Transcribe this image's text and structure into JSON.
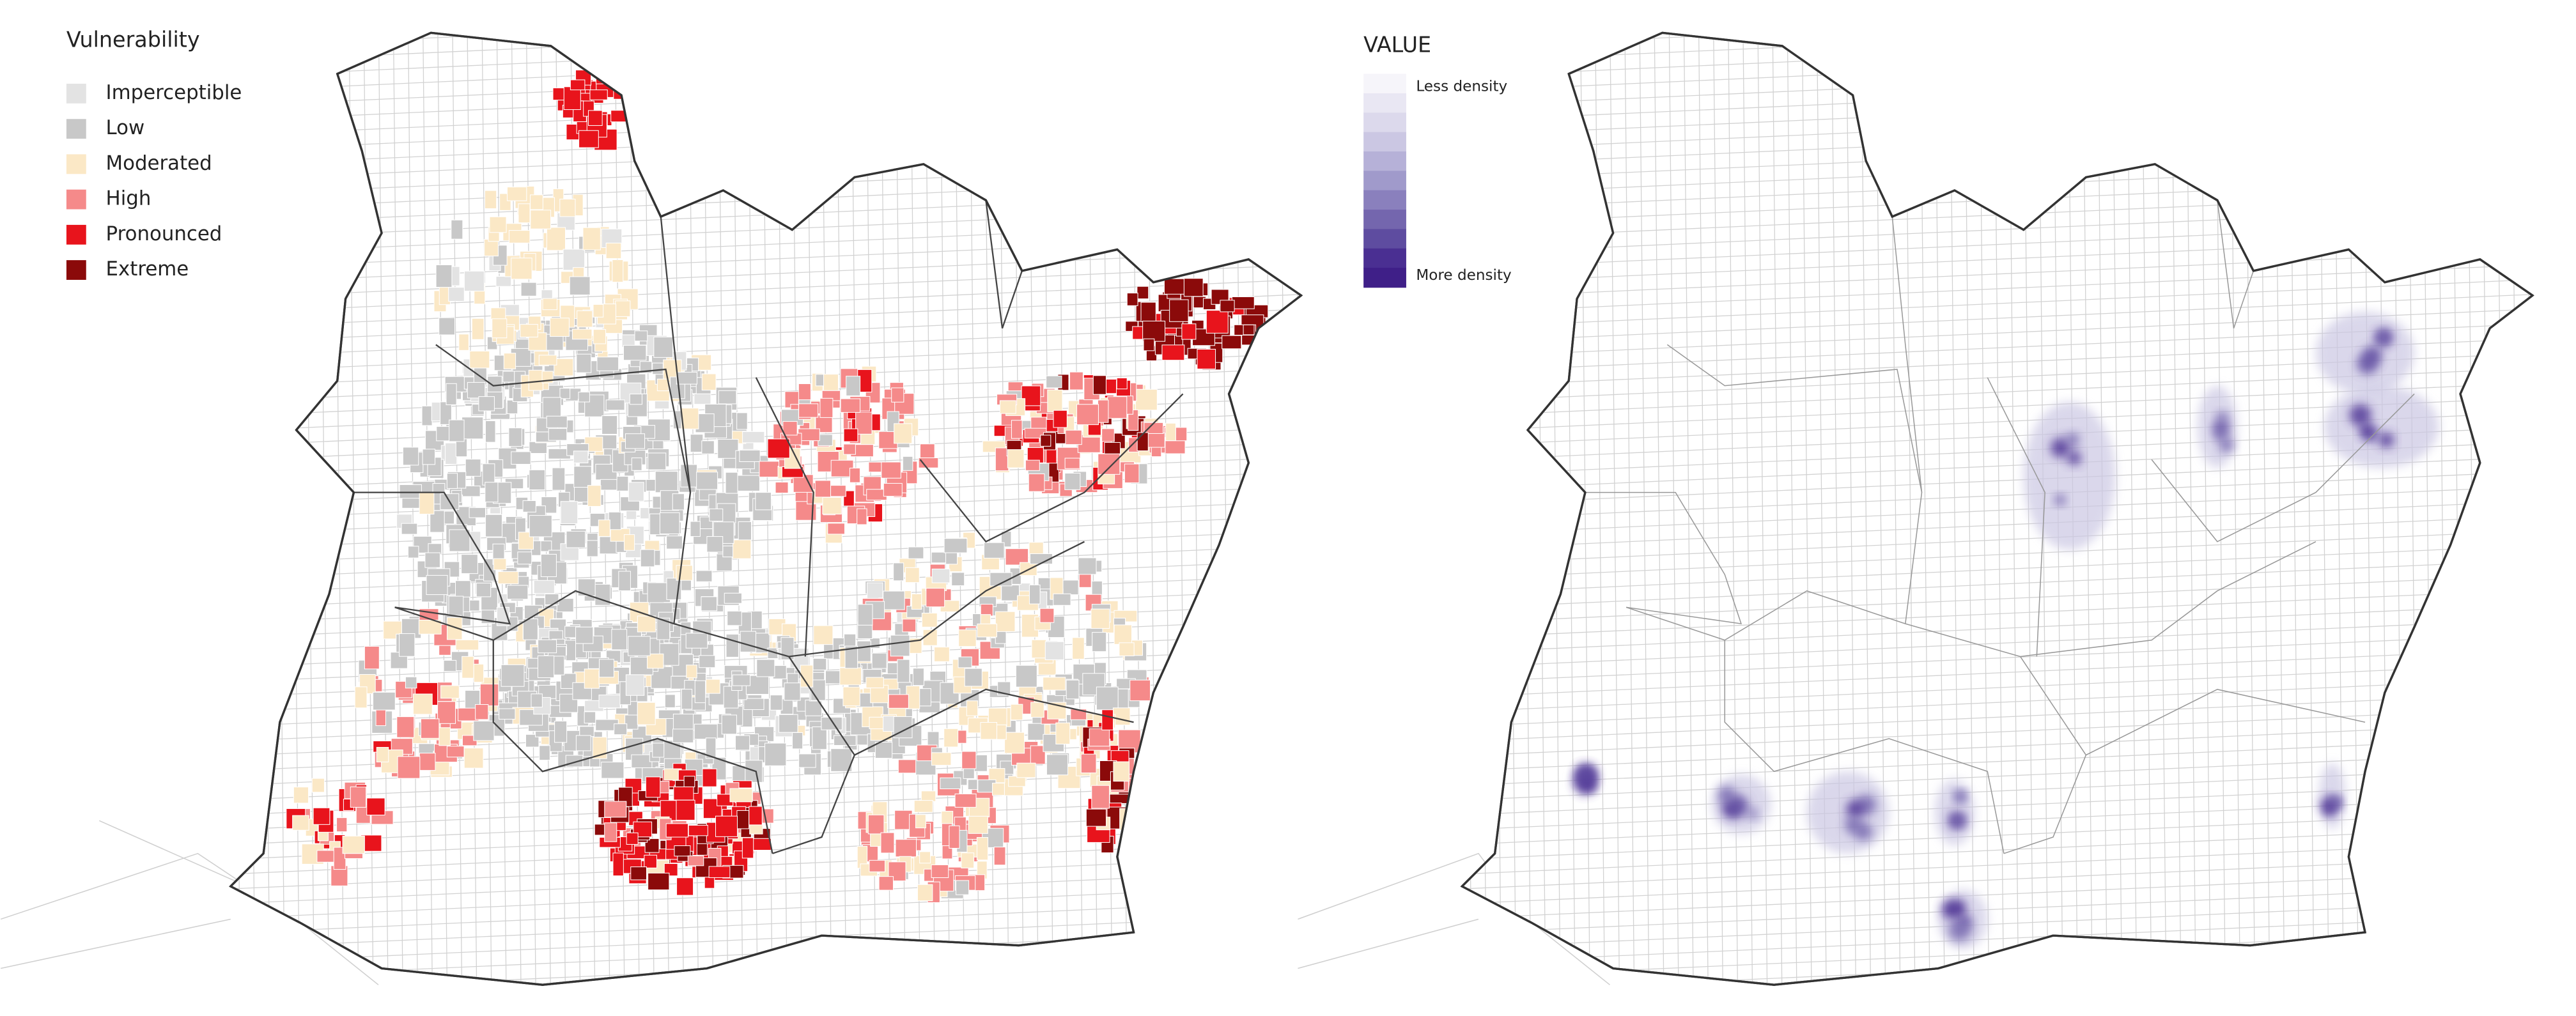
{
  "left_map": {
    "legend": {
      "title": "Vulnerability",
      "items": [
        {
          "label": "Imperceptible",
          "color": "#e3e3e3"
        },
        {
          "label": "Low",
          "color": "#c8c8c8"
        },
        {
          "label": "Moderated",
          "color": "#fbe8c6"
        },
        {
          "label": "High",
          "color": "#f58a8a"
        },
        {
          "label": "Pronounced",
          "color": "#e8141c"
        },
        {
          "label": "Extreme",
          "color": "#8b0a0a"
        }
      ]
    }
  },
  "right_map": {
    "legend": {
      "title": "VALUE",
      "top_label": "Less density",
      "bottom_label": "More density",
      "colors": [
        "#f6f5fa",
        "#e9e7f3",
        "#dcd9ec",
        "#cbc7e3",
        "#b6b1d8",
        "#a09acb",
        "#8a80bd",
        "#7466ae",
        "#5e4ca0",
        "#4a2f92",
        "#3f1f88"
      ]
    }
  }
}
